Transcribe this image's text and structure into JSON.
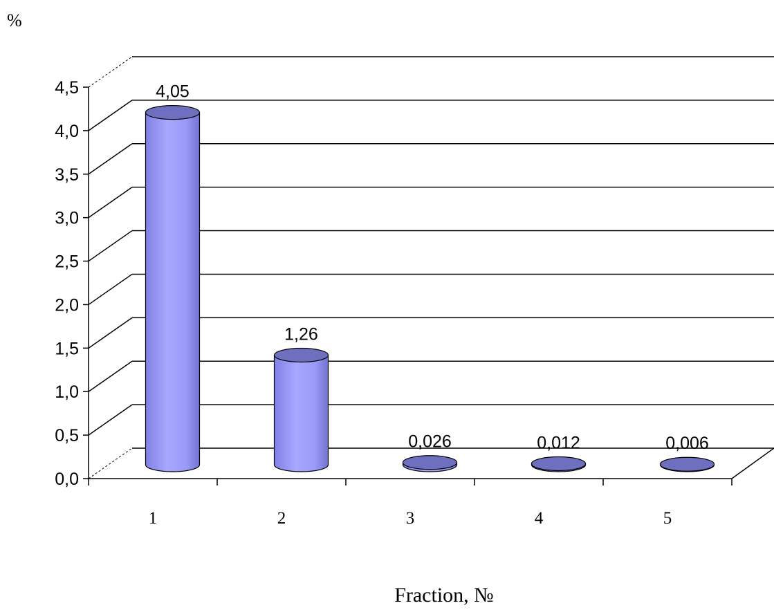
{
  "chart_data": {
    "type": "bar",
    "style": "3d-cylinder",
    "categories": [
      "1",
      "2",
      "3",
      "4",
      "5"
    ],
    "values": [
      4.05,
      1.26,
      0.026,
      0.012,
      0.006
    ],
    "data_labels": [
      "4,05",
      "1,26",
      "0,026",
      "0,012",
      "0,006"
    ],
    "ylabel": "%",
    "xlabel": "Fraction, №",
    "ylim": [
      0,
      4.5
    ],
    "yticks": [
      0,
      0.5,
      1,
      1.5,
      2,
      2.5,
      3,
      3.5,
      4,
      4.5
    ],
    "ytick_labels": [
      "0,0",
      "0,5",
      "1,0",
      "1,5",
      "2,0",
      "2,5",
      "3,0",
      "3,5",
      "4,0",
      "4,5"
    ],
    "grid": true,
    "legend": false,
    "colors": {
      "bar_side": "#9999ff",
      "bar_top": "#6f6fbf",
      "bar_outline": "#000000",
      "grid": "#000000"
    }
  }
}
